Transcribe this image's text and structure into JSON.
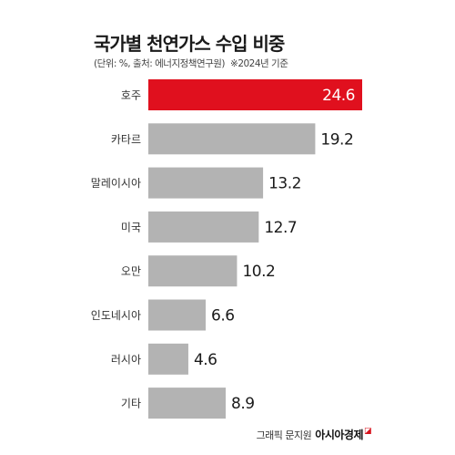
{
  "title": "국가별 천연가스 수입 비중",
  "subtitle": "(단위: %, 출처: 에너지정책연구원)",
  "note": "※2024년 기준",
  "footer": {
    "credit": "그래픽 문지원",
    "brand": "아시아경제"
  },
  "colors": {
    "highlight": "#e0101e",
    "bar": "#b3b3b3",
    "highlight_text": "#ffffff",
    "text": "#1a1a1a"
  },
  "chart_data": {
    "type": "bar",
    "orientation": "horizontal",
    "categories": [
      "호주",
      "카타르",
      "말레이시아",
      "미국",
      "오만",
      "인도네시아",
      "러시아",
      "기타"
    ],
    "values": [
      24.6,
      19.2,
      13.2,
      12.7,
      10.2,
      6.6,
      4.6,
      8.9
    ],
    "labels": [
      "24.6",
      "19.2",
      "13.2",
      "12.7",
      "10.2",
      "6.6",
      "4.6",
      "8.9"
    ],
    "highlight_index": 0,
    "xlim": [
      0,
      24.6
    ]
  }
}
